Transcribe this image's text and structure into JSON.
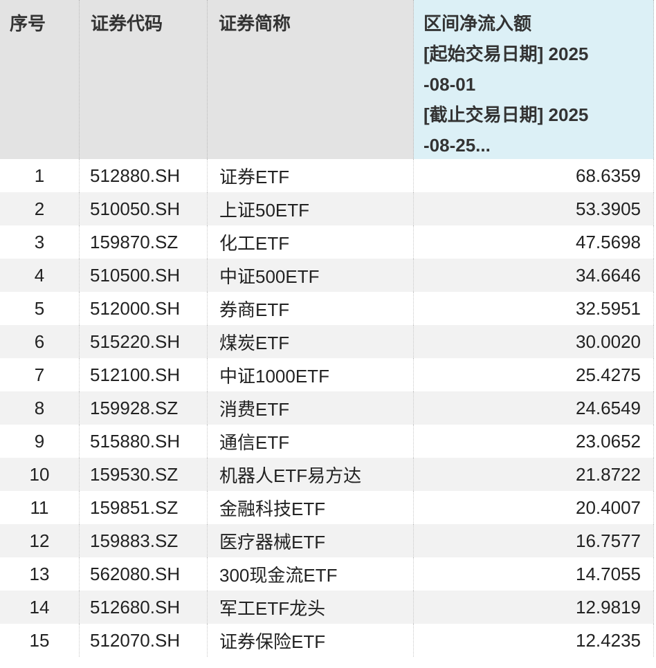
{
  "table": {
    "headers": [
      [
        "序号"
      ],
      [
        "证券代码"
      ],
      [
        "证券简称"
      ],
      [
        "区间净流入额",
        "[起始交易日期] 2025",
        "-08-01",
        "[截止交易日期] 2025",
        "-08-25..."
      ]
    ],
    "rows": [
      [
        "1",
        "512880.SH",
        "证券ETF",
        "68.6359"
      ],
      [
        "2",
        "510050.SH",
        "上证50ETF",
        "53.3905"
      ],
      [
        "3",
        "159870.SZ",
        "化工ETF",
        "47.5698"
      ],
      [
        "4",
        "510500.SH",
        "中证500ETF",
        "34.6646"
      ],
      [
        "5",
        "512000.SH",
        "券商ETF",
        "32.5951"
      ],
      [
        "6",
        "515220.SH",
        "煤炭ETF",
        "30.0020"
      ],
      [
        "7",
        "512100.SH",
        "中证1000ETF",
        "25.4275"
      ],
      [
        "8",
        "159928.SZ",
        "消费ETF",
        "24.6549"
      ],
      [
        "9",
        "515880.SH",
        "通信ETF",
        "23.0652"
      ],
      [
        "10",
        "159530.SZ",
        "机器人ETF易方达",
        "21.8722"
      ],
      [
        "11",
        "159851.SZ",
        "金融科技ETF",
        "20.4007"
      ],
      [
        "12",
        "159883.SZ",
        "医疗器械ETF",
        "16.7577"
      ],
      [
        "13",
        "562080.SH",
        "300现金流ETF",
        "14.7055"
      ],
      [
        "14",
        "512680.SH",
        "军工ETF龙头",
        "12.9819"
      ],
      [
        "15",
        "512070.SH",
        "证券保险ETF",
        "12.4235"
      ]
    ]
  }
}
